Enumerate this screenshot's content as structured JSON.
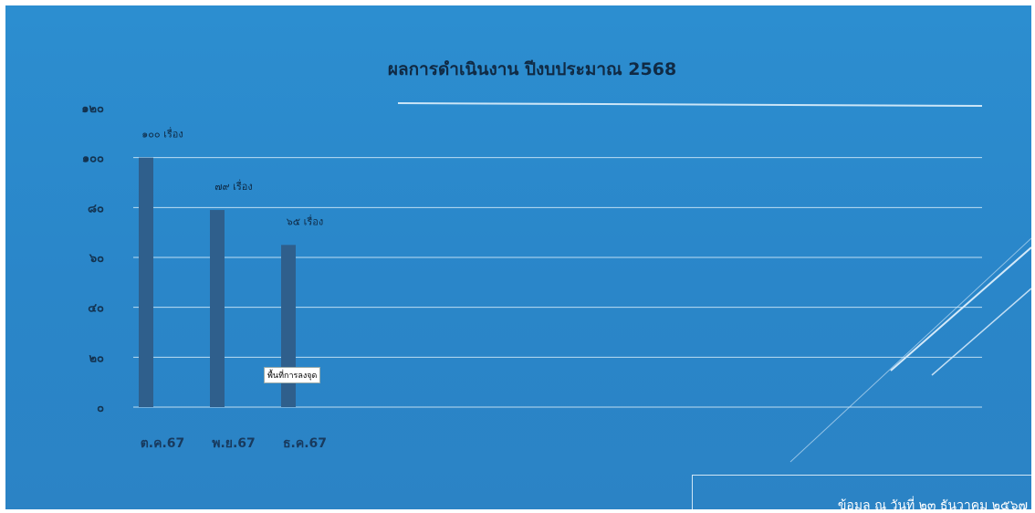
{
  "slide": {
    "annotation": "พื้นที่การลงจุด",
    "footer_note": "ข้อมูล ณ วันที่ ๒๓ ธันวาคม ๒๕๖๗"
  },
  "colors": {
    "background": "#2b89cc",
    "bar": "#2f5f8c",
    "gridline": "#d7ecfa"
  },
  "chart_data": {
    "type": "bar",
    "title": "ผลการดำเนินงาน ปีงบประมาณ 2568",
    "categories": [
      "ต.ค.67",
      "พ.ย.67",
      "ธ.ค.67"
    ],
    "values": [
      100,
      79,
      65
    ],
    "data_labels": [
      "๑๐๐ เรื่อง",
      "๗๙ เรื่อง",
      "๖๕ เรื่อง"
    ],
    "ylim": [
      0,
      120
    ],
    "yticks": [
      0,
      20,
      40,
      60,
      80,
      100,
      120
    ],
    "ytick_labels": [
      "๐",
      "๒๐",
      "๔๐",
      "๖๐",
      "๘๐",
      "๑๐๐",
      "๑๒๐"
    ],
    "xlabel": "",
    "ylabel": "",
    "grid": true,
    "legend": "none"
  }
}
